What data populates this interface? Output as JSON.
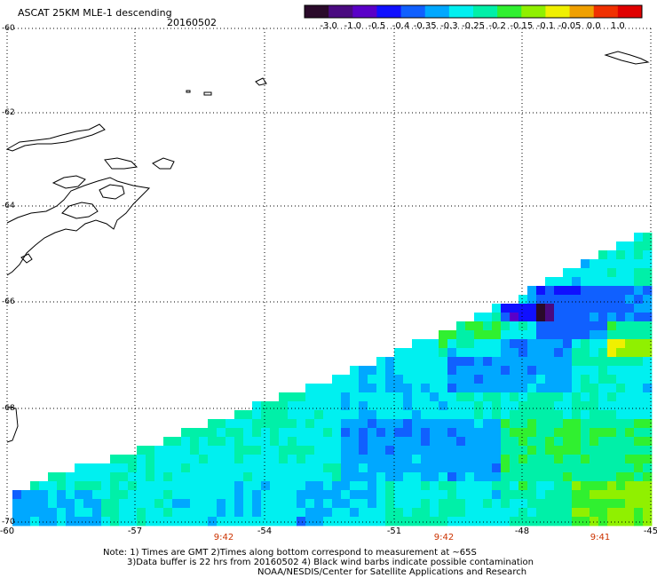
{
  "header": {
    "title": "ASCAT 25KM MLE-1 descending",
    "date": "20160502"
  },
  "colorbar": {
    "ticks": [
      "-3.0",
      "-1.0",
      "-0.5",
      "-0.4",
      "-0.35",
      "-0.3",
      "-0.25",
      "-0.2",
      "-0.15",
      "-0.1",
      "-0.05",
      "0.0",
      "1.0"
    ],
    "colors": [
      "#2a0a2a",
      "#4a0a80",
      "#5a00c8",
      "#1010ff",
      "#1060ff",
      "#00a8ff",
      "#00f0f0",
      "#00f0a8",
      "#30f030",
      "#90f000",
      "#f0f000",
      "#f0a000",
      "#f03000",
      "#e00000"
    ]
  },
  "map": {
    "lat_labels": [
      "-60",
      "-62",
      "-64",
      "-66",
      "-68",
      "-70"
    ],
    "lon_labels": [
      "-60",
      "-57",
      "-54",
      "-51",
      "-48",
      "-45"
    ],
    "time_labels": [
      "9:42",
      "9:42",
      "9:41"
    ]
  },
  "notes": {
    "line1": "Note: 1) Times are GMT 2)Times along bottom correspond to measurement at ~65S",
    "line2": "3)Data buffer is 22 hrs from 20160502 4) Black wind barbs indicate possible contamination",
    "line3": "NOAA/NESDIS/Center for Satellite Applications and Research"
  }
}
